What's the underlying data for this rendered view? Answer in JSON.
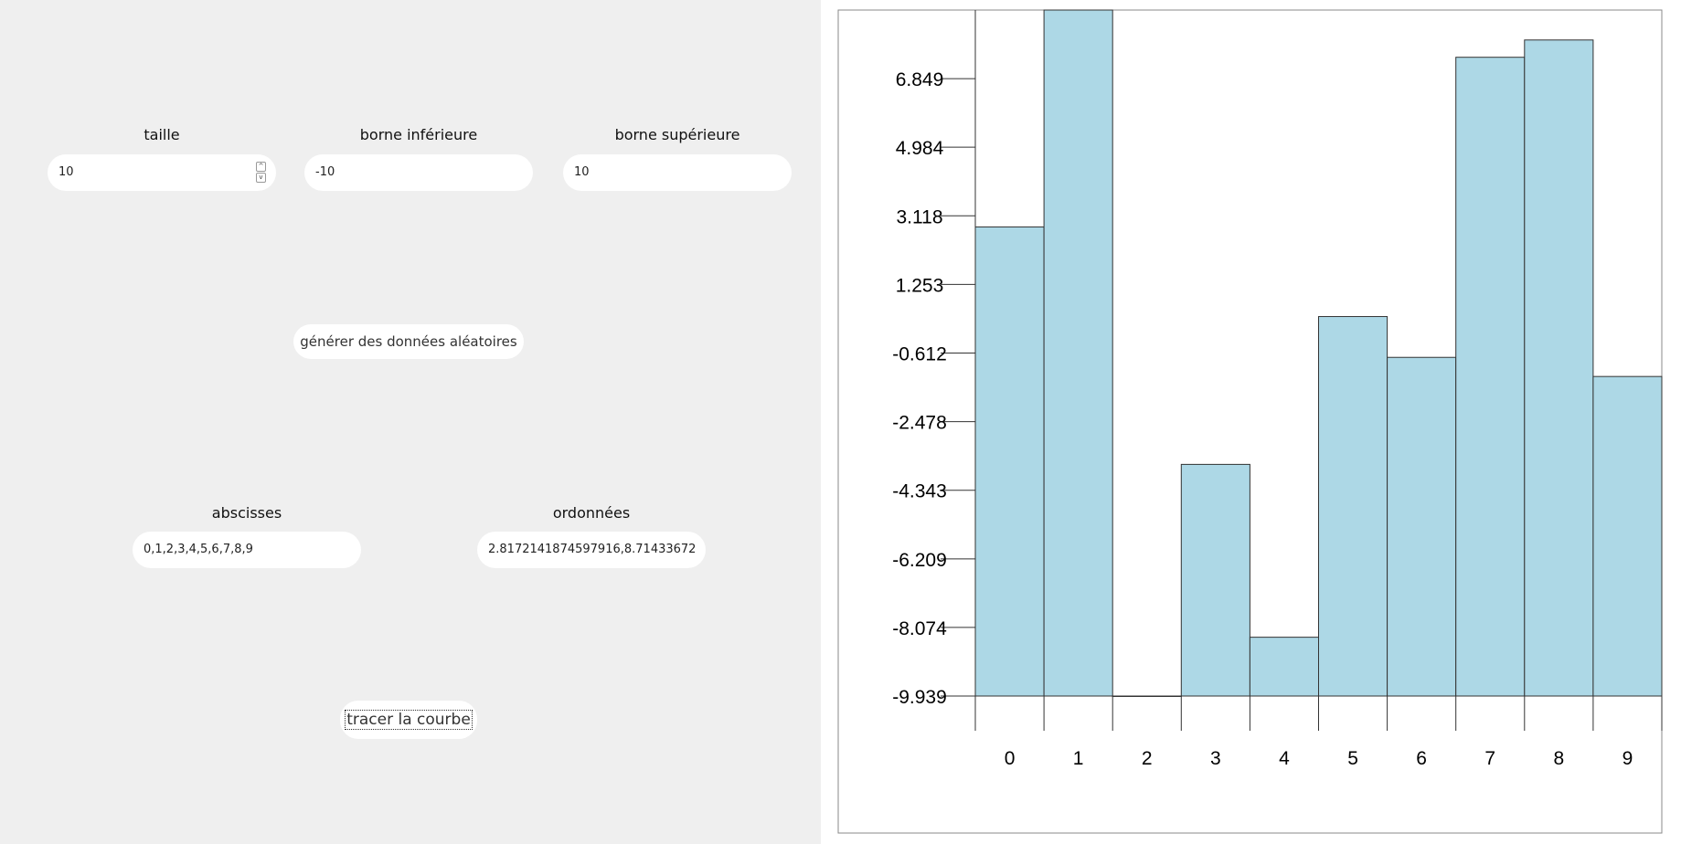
{
  "form": {
    "taille_label": "taille",
    "taille_value": "10",
    "borne_inf_label": "borne inférieure",
    "borne_inf_value": "-10",
    "borne_sup_label": "borne supérieure",
    "borne_sup_value": "10",
    "generate_button": "générer des données aléatoires",
    "abscisses_label": "abscisses",
    "abscisses_value": "0,1,2,3,4,5,6,7,8,9",
    "ordonnees_label": "ordonnées",
    "ordonnees_value": "2.8172141874597916,8.71433672",
    "plot_button": "tracer la courbe"
  },
  "chart_data": {
    "type": "bar",
    "categories": [
      "0",
      "1",
      "2",
      "3",
      "4",
      "5",
      "6",
      "7",
      "8",
      "9"
    ],
    "values": [
      2.817,
      8.714,
      -9.939,
      -3.64,
      -8.34,
      0.38,
      -0.73,
      7.43,
      7.9,
      -1.25
    ],
    "ylim": [
      -9.939,
      8.714
    ],
    "yticks": [
      "-9.939",
      "-8.074",
      "-6.209",
      "-4.343",
      "-2.478",
      "-0.612",
      "1.253",
      "3.118",
      "4.984",
      "6.849"
    ],
    "bar_color": "#add8e6",
    "grid": false
  }
}
